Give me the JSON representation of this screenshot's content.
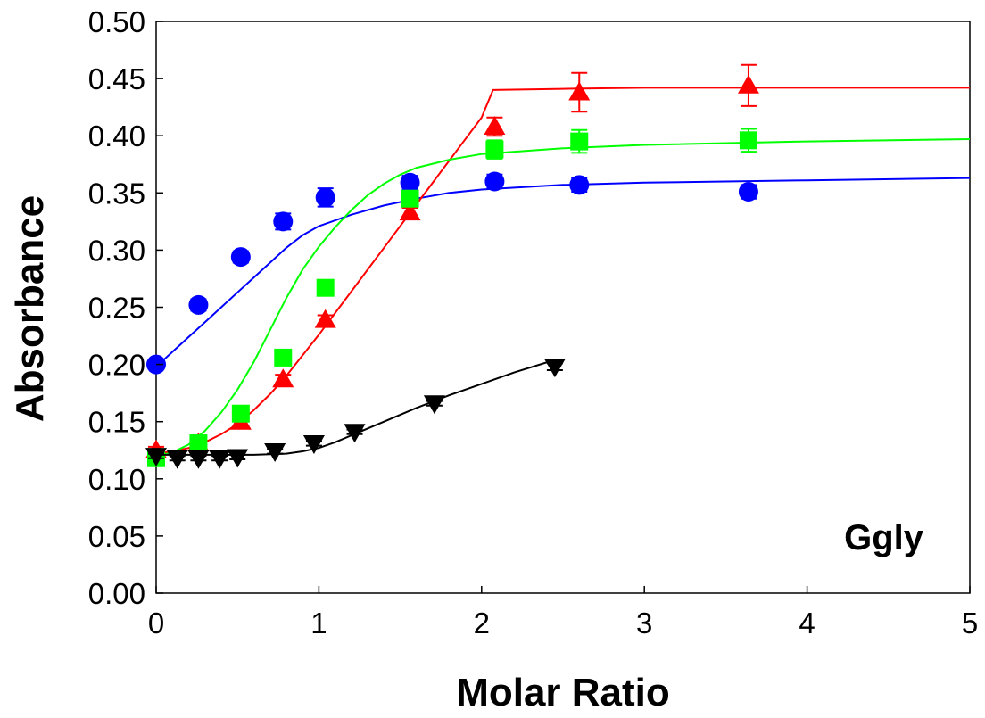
{
  "chart_data": {
    "type": "scatter",
    "xlabel": "Molar Ratio",
    "ylabel": "Absorbance",
    "annotation": "Ggly",
    "xlim": [
      0,
      5
    ],
    "ylim": [
      0,
      0.5
    ],
    "x_ticks": [
      "0",
      "1",
      "2",
      "3",
      "4",
      "5"
    ],
    "y_ticks": [
      "0.00",
      "0.05",
      "0.10",
      "0.15",
      "0.20",
      "0.25",
      "0.30",
      "0.35",
      "0.40",
      "0.45",
      "0.50"
    ],
    "grid": false,
    "series": [
      {
        "color": "#0000ff",
        "marker": "circle",
        "points": [
          [
            0,
            0.2
          ],
          [
            0.26,
            0.252
          ],
          [
            0.52,
            0.294
          ],
          [
            0.78,
            0.325
          ],
          [
            1.04,
            0.346
          ],
          [
            1.56,
            0.359
          ],
          [
            2.08,
            0.36
          ],
          [
            2.6,
            0.357
          ],
          [
            3.64,
            0.351
          ]
        ],
        "errors": [
          0.001,
          0.005,
          0.005,
          0.007,
          0.008,
          0.006,
          0.006,
          0.006,
          0.006
        ],
        "fit": [
          [
            0,
            0.198
          ],
          [
            0.1,
            0.211
          ],
          [
            0.2,
            0.224
          ],
          [
            0.3,
            0.237
          ],
          [
            0.4,
            0.25
          ],
          [
            0.5,
            0.263
          ],
          [
            0.6,
            0.276
          ],
          [
            0.7,
            0.289
          ],
          [
            0.8,
            0.302
          ],
          [
            0.9,
            0.313
          ],
          [
            1.0,
            0.321
          ],
          [
            1.2,
            0.331
          ],
          [
            1.4,
            0.339
          ],
          [
            1.6,
            0.345
          ],
          [
            1.8,
            0.35
          ],
          [
            2.0,
            0.353
          ],
          [
            2.5,
            0.357
          ],
          [
            3.0,
            0.359
          ],
          [
            4.0,
            0.361
          ],
          [
            5.0,
            0.363
          ]
        ]
      },
      {
        "color": "#ff0000",
        "marker": "triangle-up",
        "points": [
          [
            0,
            0.125
          ],
          [
            0.26,
            0.131
          ],
          [
            0.52,
            0.15
          ],
          [
            0.78,
            0.187
          ],
          [
            1.04,
            0.239
          ],
          [
            1.56,
            0.333
          ],
          [
            2.08,
            0.408
          ],
          [
            2.6,
            0.438
          ],
          [
            3.64,
            0.444
          ]
        ],
        "errors": [
          0.003,
          0.004,
          0.004,
          0.004,
          0.004,
          0.004,
          0.008,
          0.017,
          0.018
        ],
        "fit": [
          [
            0,
            0.122
          ],
          [
            0.1,
            0.124
          ],
          [
            0.2,
            0.127
          ],
          [
            0.3,
            0.132
          ],
          [
            0.4,
            0.139
          ],
          [
            0.5,
            0.148
          ],
          [
            0.6,
            0.16
          ],
          [
            0.7,
            0.174
          ],
          [
            0.8,
            0.19
          ],
          [
            1.0,
            0.226
          ],
          [
            1.2,
            0.264
          ],
          [
            1.4,
            0.302
          ],
          [
            1.6,
            0.34
          ],
          [
            1.8,
            0.378
          ],
          [
            2.0,
            0.416
          ],
          [
            2.07,
            0.44
          ],
          [
            2.5,
            0.441
          ],
          [
            3.0,
            0.442
          ],
          [
            4.0,
            0.442
          ],
          [
            5.0,
            0.442
          ]
        ]
      },
      {
        "color": "#00ff00",
        "marker": "square",
        "points": [
          [
            0,
            0.118
          ],
          [
            0.26,
            0.131
          ],
          [
            0.52,
            0.157
          ],
          [
            0.78,
            0.206
          ],
          [
            1.04,
            0.267
          ],
          [
            1.56,
            0.345
          ],
          [
            2.08,
            0.388
          ],
          [
            2.6,
            0.395
          ],
          [
            3.64,
            0.396
          ]
        ],
        "errors": [
          0.004,
          0.003,
          0.003,
          0.004,
          0.004,
          0.005,
          0.008,
          0.01,
          0.01
        ],
        "fit": [
          [
            0,
            0.12
          ],
          [
            0.1,
            0.123
          ],
          [
            0.2,
            0.13
          ],
          [
            0.3,
            0.142
          ],
          [
            0.4,
            0.158
          ],
          [
            0.5,
            0.178
          ],
          [
            0.6,
            0.202
          ],
          [
            0.7,
            0.23
          ],
          [
            0.8,
            0.258
          ],
          [
            0.9,
            0.283
          ],
          [
            1.0,
            0.303
          ],
          [
            1.1,
            0.32
          ],
          [
            1.2,
            0.335
          ],
          [
            1.3,
            0.348
          ],
          [
            1.4,
            0.358
          ],
          [
            1.5,
            0.366
          ],
          [
            1.6,
            0.372
          ],
          [
            1.8,
            0.379
          ],
          [
            2.0,
            0.384
          ],
          [
            2.5,
            0.389
          ],
          [
            3.0,
            0.392
          ],
          [
            4.0,
            0.395
          ],
          [
            5.0,
            0.397
          ]
        ]
      },
      {
        "color": "#000000",
        "marker": "triangle-down",
        "points": [
          [
            0,
            0.12
          ],
          [
            0.13,
            0.118
          ],
          [
            0.26,
            0.118
          ],
          [
            0.39,
            0.118
          ],
          [
            0.5,
            0.119
          ],
          [
            0.73,
            0.124
          ],
          [
            0.97,
            0.131
          ],
          [
            1.22,
            0.141
          ],
          [
            1.71,
            0.166
          ],
          [
            2.45,
            0.198
          ]
        ],
        "errors": [
          0.002,
          0.002,
          0.002,
          0.002,
          0.002,
          0.002,
          0.002,
          0.002,
          0.002,
          0.003
        ],
        "fit": [
          [
            0,
            0.121
          ],
          [
            0.2,
            0.121
          ],
          [
            0.4,
            0.121
          ],
          [
            0.6,
            0.121
          ],
          [
            0.8,
            0.122
          ],
          [
            0.9,
            0.124
          ],
          [
            1.0,
            0.127
          ],
          [
            1.1,
            0.132
          ],
          [
            1.2,
            0.138
          ],
          [
            1.4,
            0.15
          ],
          [
            1.6,
            0.162
          ],
          [
            1.8,
            0.173
          ],
          [
            2.0,
            0.183
          ],
          [
            2.2,
            0.193
          ],
          [
            2.45,
            0.204
          ]
        ]
      }
    ]
  }
}
